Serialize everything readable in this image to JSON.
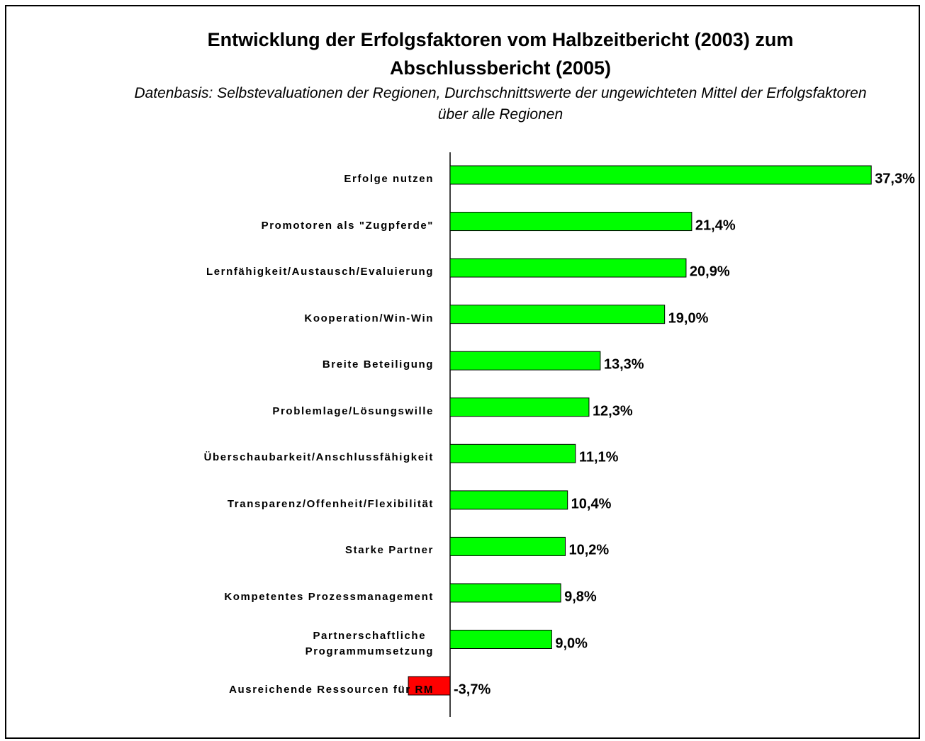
{
  "chart_data": {
    "type": "hbar",
    "title": "Entwicklung der Erfolgsfaktoren vom Halbzeitbericht (2003) zum Abschlussbericht (2005)",
    "subtitle": "Datenbasis: Selbstevaluationen der Regionen, Durchschnittswerte der ungewichteten Mittel der Erfolgsfaktoren über alle Regionen",
    "categories": [
      "Erfolge nutzen",
      "Promotoren als \"Zugpferde\"",
      "Lernfähigkeit/Austausch/Evaluierung",
      "Kooperation/Win-Win",
      "Breite Beteiligung",
      "Problemlage/Lösungswille",
      "Überschaubarkeit/Anschlussfähigkeit",
      "Transparenz/Offenheit/Flexibilität",
      "Starke Partner",
      "Kompetentes Prozessmanagement",
      "Partnerschaftliche\nProgrammumsetzung",
      "Ausreichende Ressourcen für RM"
    ],
    "values": [
      37.3,
      21.4,
      20.9,
      19.0,
      13.3,
      12.3,
      11.1,
      10.4,
      10.2,
      9.8,
      9.0,
      -3.7
    ],
    "value_labels": [
      "37,3%",
      "21,4%",
      "20,9%",
      "19,0%",
      "13,3%",
      "12,3%",
      "11,1%",
      "10,4%",
      "10,2%",
      "9,8%",
      "9,0%",
      "-3,7%"
    ],
    "color": "#00ff00",
    "negative_color": "#ff0000"
  }
}
